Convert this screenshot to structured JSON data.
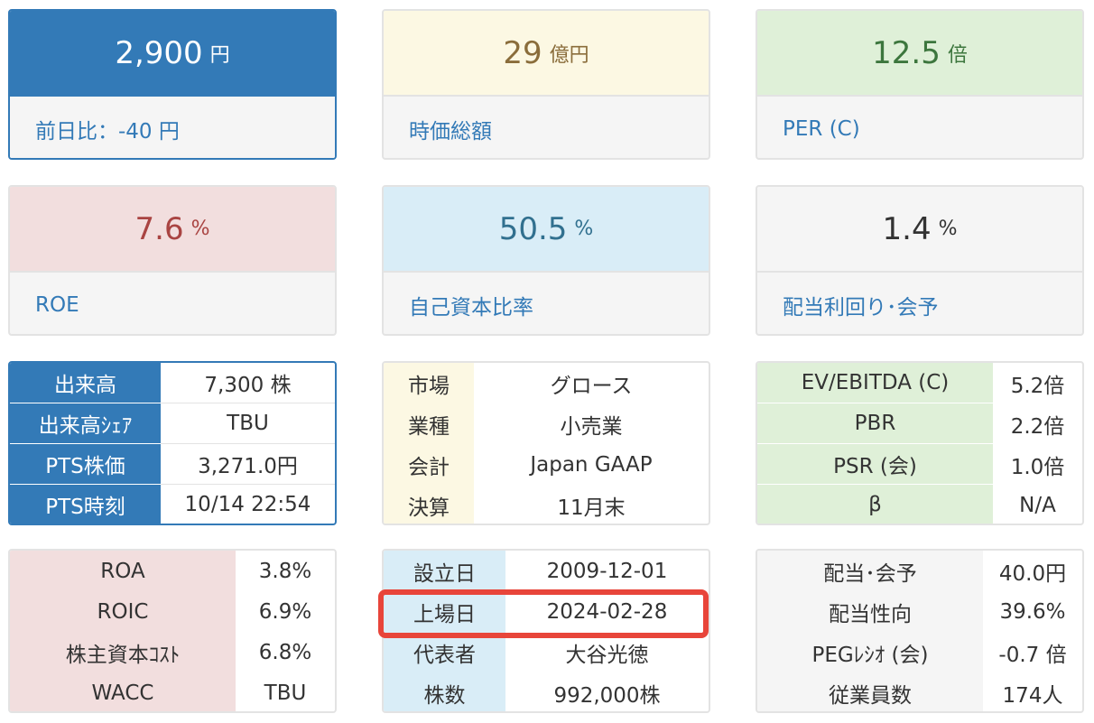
{
  "cards": {
    "price": {
      "value": "2,900",
      "unit": "円",
      "label": "前日比：-40 円"
    },
    "market_cap": {
      "value": "29",
      "unit": "億円",
      "label": "時価総額"
    },
    "per": {
      "value": "12.5",
      "unit": "倍",
      "label": "PER (C)"
    },
    "roe": {
      "value": "7.6",
      "unit": "%",
      "label": "ROE"
    },
    "equity_ratio": {
      "value": "50.5",
      "unit": "%",
      "label": "自己資本比率"
    },
    "dividend_yield": {
      "value": "1.4",
      "unit": "%",
      "label": "配当利回り･会予"
    }
  },
  "trading_table": [
    {
      "k": "出来高",
      "v": "7,300 株"
    },
    {
      "k": "出来高ｼｪｱ",
      "v": "TBU"
    },
    {
      "k": "PTS株価",
      "v": "3,271.0円"
    },
    {
      "k": "PTS時刻",
      "v": "10/14 22:54"
    }
  ],
  "company_table": [
    {
      "k": "市場",
      "v": "グロース"
    },
    {
      "k": "業種",
      "v": "小売業"
    },
    {
      "k": "会計",
      "v": "Japan GAAP"
    },
    {
      "k": "決算",
      "v": "11月末"
    }
  ],
  "valuation_table": [
    {
      "k": "EV/EBITDA (C)",
      "v": "5.2倍"
    },
    {
      "k": "PBR",
      "v": "2.2倍"
    },
    {
      "k": "PSR (会)",
      "v": "1.0倍"
    },
    {
      "k": "β",
      "v": "N/A"
    }
  ],
  "returns_table": [
    {
      "k": "ROA",
      "v": "3.8%"
    },
    {
      "k": "ROIC",
      "v": "6.9%"
    },
    {
      "k": "株主資本ｺｽﾄ",
      "v": "6.8%"
    },
    {
      "k": "WACC",
      "v": "TBU"
    }
  ],
  "profile_table": [
    {
      "k": "設立日",
      "v": "2009-12-01"
    },
    {
      "k": "上場日",
      "v": "2024-02-28"
    },
    {
      "k": "代表者",
      "v": "大谷光徳"
    },
    {
      "k": "株数",
      "v": "992,000株"
    }
  ],
  "dividend_table": [
    {
      "k": "配当･会予",
      "v": "40.0円"
    },
    {
      "k": "配当性向",
      "v": "39.6%"
    },
    {
      "k": "PEGﾚｼｵ (会)",
      "v": "-0.7 倍"
    },
    {
      "k": "従業員数",
      "v": "174人"
    }
  ],
  "colors": {
    "primary": "#337ab7",
    "warning": "#fcf8e3",
    "success": "#dff0d8",
    "danger": "#f2dede",
    "info": "#d9edf7",
    "highlight": "#e8453a"
  }
}
